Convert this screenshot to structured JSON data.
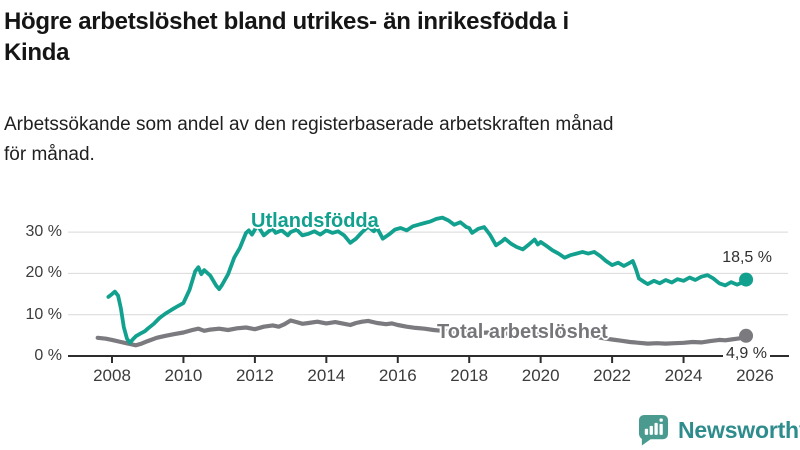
{
  "header": {
    "title_lines": [
      "Högre arbetslöshet bland utrikes- än inrikesfödda i",
      "Kinda"
    ],
    "subtitle_lines": [
      "Arbetssökande som andel av den registerbaserade arbetskraften månad",
      "för månad."
    ]
  },
  "chart_data": {
    "type": "line",
    "title": "Högre arbetslöshet bland utrikes- än inrikesfödda i Kinda",
    "subtitle": "Arbetssökande som andel av den registerbaserade arbetskraften månad för månad.",
    "unit": "%",
    "grid": "horizontal",
    "legend_position": "inline-labels",
    "x_axis": {
      "range_years": [
        2007.6,
        2026.3
      ],
      "tick_years": [
        2008,
        2010,
        2012,
        2014,
        2016,
        2018,
        2020,
        2022,
        2024,
        2026
      ],
      "tick_labels": [
        "2008",
        "2010",
        "2012",
        "2014",
        "2016",
        "2018",
        "2020",
        "2022",
        "2024",
        "2026"
      ]
    },
    "y_axis": {
      "range": [
        0,
        35
      ],
      "gridlines": [
        10,
        20,
        30
      ],
      "ticks": [
        {
          "value": 30,
          "label": "30 %"
        },
        {
          "value": 20,
          "label": "20 %"
        },
        {
          "value": 10,
          "label": "10 %"
        },
        {
          "value": 0,
          "label": "0 %"
        }
      ]
    },
    "series": [
      {
        "name": "Utlandsfödda",
        "color": "#12a08f",
        "end_label": "18,5 %",
        "end_value": 18.5,
        "line_width": 3.8,
        "points": [
          [
            2007.9,
            14.3
          ],
          [
            2008.0,
            15.0
          ],
          [
            2008.08,
            15.6
          ],
          [
            2008.17,
            14.6
          ],
          [
            2008.25,
            11.5
          ],
          [
            2008.33,
            7.0
          ],
          [
            2008.42,
            4.2
          ],
          [
            2008.5,
            3.2
          ],
          [
            2008.58,
            4.0
          ],
          [
            2008.67,
            4.8
          ],
          [
            2008.75,
            5.2
          ],
          [
            2008.83,
            5.6
          ],
          [
            2008.92,
            6.0
          ],
          [
            2009.0,
            6.6
          ],
          [
            2009.17,
            7.8
          ],
          [
            2009.33,
            9.2
          ],
          [
            2009.5,
            10.3
          ],
          [
            2009.67,
            11.2
          ],
          [
            2009.83,
            12.0
          ],
          [
            2010.0,
            12.8
          ],
          [
            2010.17,
            16.0
          ],
          [
            2010.33,
            20.5
          ],
          [
            2010.42,
            21.5
          ],
          [
            2010.5,
            19.8
          ],
          [
            2010.58,
            20.8
          ],
          [
            2010.75,
            19.5
          ],
          [
            2010.92,
            17.0
          ],
          [
            2011.0,
            16.2
          ],
          [
            2011.08,
            17.2
          ],
          [
            2011.25,
            19.8
          ],
          [
            2011.42,
            23.8
          ],
          [
            2011.58,
            26.2
          ],
          [
            2011.75,
            29.8
          ],
          [
            2011.83,
            30.4
          ],
          [
            2011.92,
            29.4
          ],
          [
            2012.0,
            30.6
          ],
          [
            2012.08,
            31.6
          ],
          [
            2012.25,
            29.2
          ],
          [
            2012.42,
            30.4
          ],
          [
            2012.5,
            30.8
          ],
          [
            2012.58,
            29.8
          ],
          [
            2012.75,
            30.4
          ],
          [
            2012.92,
            29.2
          ],
          [
            2013.0,
            30.0
          ],
          [
            2013.17,
            30.6
          ],
          [
            2013.33,
            29.2
          ],
          [
            2013.5,
            29.6
          ],
          [
            2013.67,
            30.2
          ],
          [
            2013.83,
            29.4
          ],
          [
            2014.0,
            30.4
          ],
          [
            2014.17,
            29.8
          ],
          [
            2014.33,
            30.2
          ],
          [
            2014.5,
            29.2
          ],
          [
            2014.67,
            27.4
          ],
          [
            2014.83,
            28.4
          ],
          [
            2015.0,
            30.0
          ],
          [
            2015.17,
            31.3
          ],
          [
            2015.33,
            30.2
          ],
          [
            2015.42,
            31.0
          ],
          [
            2015.58,
            28.4
          ],
          [
            2015.75,
            29.4
          ],
          [
            2015.92,
            30.6
          ],
          [
            2016.08,
            31.0
          ],
          [
            2016.25,
            30.4
          ],
          [
            2016.42,
            31.4
          ],
          [
            2016.58,
            31.8
          ],
          [
            2016.75,
            32.2
          ],
          [
            2016.92,
            32.6
          ],
          [
            2017.08,
            33.2
          ],
          [
            2017.25,
            33.5
          ],
          [
            2017.42,
            32.8
          ],
          [
            2017.58,
            31.8
          ],
          [
            2017.75,
            32.4
          ],
          [
            2017.92,
            31.2
          ],
          [
            2018.0,
            31.0
          ],
          [
            2018.08,
            29.8
          ],
          [
            2018.25,
            30.8
          ],
          [
            2018.42,
            31.2
          ],
          [
            2018.58,
            29.4
          ],
          [
            2018.75,
            26.8
          ],
          [
            2018.92,
            27.8
          ],
          [
            2019.0,
            28.4
          ],
          [
            2019.17,
            27.2
          ],
          [
            2019.33,
            26.4
          ],
          [
            2019.5,
            25.8
          ],
          [
            2019.67,
            27.0
          ],
          [
            2019.83,
            28.2
          ],
          [
            2019.92,
            27.0
          ],
          [
            2020.0,
            27.6
          ],
          [
            2020.17,
            26.6
          ],
          [
            2020.33,
            25.6
          ],
          [
            2020.5,
            24.8
          ],
          [
            2020.67,
            23.8
          ],
          [
            2020.83,
            24.4
          ],
          [
            2021.0,
            24.8
          ],
          [
            2021.17,
            25.2
          ],
          [
            2021.33,
            24.8
          ],
          [
            2021.5,
            25.2
          ],
          [
            2021.67,
            24.2
          ],
          [
            2021.83,
            23.0
          ],
          [
            2022.0,
            22.0
          ],
          [
            2022.17,
            22.6
          ],
          [
            2022.33,
            21.8
          ],
          [
            2022.5,
            22.6
          ],
          [
            2022.58,
            23.0
          ],
          [
            2022.67,
            21.0
          ],
          [
            2022.75,
            18.8
          ],
          [
            2022.92,
            17.8
          ],
          [
            2023.0,
            17.4
          ],
          [
            2023.17,
            18.2
          ],
          [
            2023.33,
            17.6
          ],
          [
            2023.5,
            18.4
          ],
          [
            2023.67,
            17.8
          ],
          [
            2023.83,
            18.6
          ],
          [
            2024.0,
            18.2
          ],
          [
            2024.17,
            19.0
          ],
          [
            2024.33,
            18.4
          ],
          [
            2024.5,
            19.2
          ],
          [
            2024.67,
            19.6
          ],
          [
            2024.83,
            18.8
          ],
          [
            2025.0,
            17.6
          ],
          [
            2025.17,
            17.1
          ],
          [
            2025.33,
            17.9
          ],
          [
            2025.5,
            17.3
          ],
          [
            2025.67,
            17.9
          ],
          [
            2025.75,
            18.5
          ]
        ]
      },
      {
        "name": "Total arbetslöshet",
        "color": "#7b7b7f",
        "end_label": "4,9 %",
        "end_value": 4.9,
        "line_width": 4.2,
        "points": [
          [
            2007.6,
            4.4
          ],
          [
            2007.83,
            4.2
          ],
          [
            2008.0,
            3.9
          ],
          [
            2008.25,
            3.4
          ],
          [
            2008.5,
            2.9
          ],
          [
            2008.67,
            2.6
          ],
          [
            2008.83,
            3.0
          ],
          [
            2009.0,
            3.6
          ],
          [
            2009.25,
            4.4
          ],
          [
            2009.5,
            4.9
          ],
          [
            2009.75,
            5.3
          ],
          [
            2010.0,
            5.7
          ],
          [
            2010.25,
            6.3
          ],
          [
            2010.42,
            6.6
          ],
          [
            2010.58,
            6.1
          ],
          [
            2010.75,
            6.4
          ],
          [
            2011.0,
            6.6
          ],
          [
            2011.25,
            6.3
          ],
          [
            2011.5,
            6.7
          ],
          [
            2011.75,
            6.9
          ],
          [
            2012.0,
            6.5
          ],
          [
            2012.25,
            7.1
          ],
          [
            2012.5,
            7.4
          ],
          [
            2012.67,
            7.1
          ],
          [
            2012.83,
            7.7
          ],
          [
            2013.0,
            8.6
          ],
          [
            2013.17,
            8.2
          ],
          [
            2013.33,
            7.8
          ],
          [
            2013.5,
            8.0
          ],
          [
            2013.75,
            8.3
          ],
          [
            2014.0,
            7.9
          ],
          [
            2014.25,
            8.2
          ],
          [
            2014.5,
            7.8
          ],
          [
            2014.67,
            7.5
          ],
          [
            2014.83,
            8.0
          ],
          [
            2015.0,
            8.3
          ],
          [
            2015.17,
            8.5
          ],
          [
            2015.42,
            8.0
          ],
          [
            2015.67,
            7.7
          ],
          [
            2015.83,
            7.9
          ],
          [
            2016.0,
            7.5
          ],
          [
            2016.25,
            7.1
          ],
          [
            2016.5,
            6.8
          ],
          [
            2016.75,
            6.6
          ],
          [
            2017.0,
            6.3
          ],
          [
            2017.25,
            6.1
          ],
          [
            2017.5,
            5.9
          ],
          [
            2017.75,
            5.6
          ],
          [
            2018.0,
            5.8
          ],
          [
            2018.25,
            5.5
          ],
          [
            2018.5,
            5.7
          ],
          [
            2018.75,
            5.3
          ],
          [
            2019.0,
            5.5
          ],
          [
            2019.25,
            5.2
          ],
          [
            2019.5,
            5.4
          ],
          [
            2019.75,
            5.1
          ],
          [
            2020.0,
            5.4
          ],
          [
            2020.25,
            6.0
          ],
          [
            2020.42,
            6.2
          ],
          [
            2020.58,
            5.9
          ],
          [
            2020.83,
            5.6
          ],
          [
            2021.0,
            5.3
          ],
          [
            2021.25,
            5.0
          ],
          [
            2021.5,
            4.7
          ],
          [
            2021.75,
            4.3
          ],
          [
            2022.0,
            4.0
          ],
          [
            2022.25,
            3.7
          ],
          [
            2022.5,
            3.4
          ],
          [
            2022.75,
            3.2
          ],
          [
            2023.0,
            3.0
          ],
          [
            2023.25,
            3.1
          ],
          [
            2023.5,
            3.0
          ],
          [
            2023.75,
            3.1
          ],
          [
            2024.0,
            3.2
          ],
          [
            2024.25,
            3.4
          ],
          [
            2024.5,
            3.3
          ],
          [
            2024.75,
            3.6
          ],
          [
            2025.0,
            3.9
          ],
          [
            2025.17,
            3.8
          ],
          [
            2025.33,
            4.0
          ],
          [
            2025.5,
            4.2
          ],
          [
            2025.67,
            4.4
          ],
          [
            2025.75,
            4.9
          ]
        ]
      }
    ],
    "colors": {
      "axis": "#2d2d2d",
      "gridline": "#d9d9d9",
      "tick_text": "#3c3c3c"
    }
  },
  "footer": {
    "brand": "Newsworthy",
    "logo_color": "#4a9a90",
    "brand_text_color": "#2e8c8c"
  }
}
